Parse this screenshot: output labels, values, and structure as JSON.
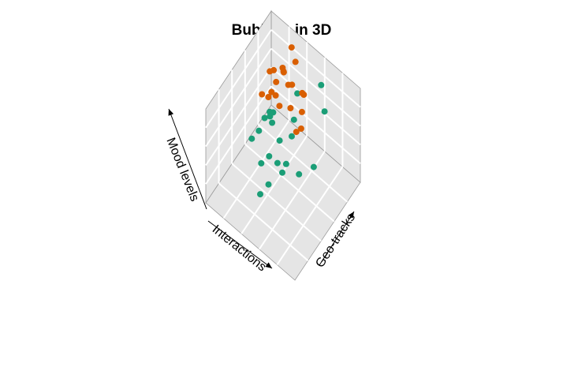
{
  "chart_data": {
    "type": "scatter",
    "subtype": "3d-scatter",
    "title": "Bubbles in 3D",
    "xlabel": "Interactions",
    "ylabel": "Geo-tracks",
    "zlabel": "Mood levels",
    "grid": true,
    "panel_color": "#e5e5e5",
    "grid_color": "#ffffff",
    "series": [
      {
        "color": "#1b9e77",
        "points": [
          {
            "x": 0.33,
            "y": 0.85,
            "z": 0.92
          },
          {
            "x": 0.27,
            "y": 0.82,
            "z": 0.72
          },
          {
            "x": 0.45,
            "y": 0.65,
            "z": 0.94
          },
          {
            "x": 0.51,
            "y": 0.68,
            "z": 0.58
          },
          {
            "x": 0.55,
            "y": 0.7,
            "z": 0.35
          },
          {
            "x": 0.48,
            "y": 0.52,
            "z": 0.3
          },
          {
            "x": 0.62,
            "y": 0.61,
            "z": 0.34
          },
          {
            "x": 0.6,
            "y": 0.55,
            "z": 0.18
          },
          {
            "x": 0.56,
            "y": 0.57,
            "z": 0.09
          },
          {
            "x": 0.62,
            "y": 0.44,
            "z": 0.05
          },
          {
            "x": 0.66,
            "y": 0.55,
            "z": 0.56
          },
          {
            "x": 0.38,
            "y": 0.58,
            "z": 0.21
          },
          {
            "x": 0.31,
            "y": 0.71,
            "z": 0.21
          },
          {
            "x": 0.62,
            "y": 0.33,
            "z": 0.39
          },
          {
            "x": 0.68,
            "y": 0.54,
            "z": 0.67
          },
          {
            "x": 0.67,
            "y": 0.58,
            "z": 0.63
          },
          {
            "x": 0.72,
            "y": 0.43,
            "z": 0.55
          },
          {
            "x": 0.62,
            "y": 0.45,
            "z": 0.34
          },
          {
            "x": 0.75,
            "y": 0.64,
            "z": 0.46
          },
          {
            "x": 0.61,
            "y": 0.3,
            "z": 0.1
          },
          {
            "x": 0.7,
            "y": 0.49,
            "z": 0.64
          },
          {
            "x": 0.8,
            "y": 0.43,
            "z": 0.4
          }
        ]
      },
      {
        "color": "#d95f02",
        "points": [
          {
            "x": 0.63,
            "y": 0.79,
            "z": 0.49
          },
          {
            "x": 0.72,
            "y": 0.88,
            "z": 0.57
          },
          {
            "x": 0.75,
            "y": 0.97,
            "z": 0.85
          },
          {
            "x": 0.83,
            "y": 0.96,
            "z": 0.53
          },
          {
            "x": 0.65,
            "y": 0.84,
            "z": 0.67
          },
          {
            "x": 0.51,
            "y": 0.83,
            "z": 0.69
          },
          {
            "x": 0.45,
            "y": 0.72,
            "z": 0.67
          },
          {
            "x": 0.77,
            "y": 0.86,
            "z": 0.73
          },
          {
            "x": 0.84,
            "y": 0.97,
            "z": 0.52
          },
          {
            "x": 0.87,
            "y": 0.78,
            "z": 0.42
          },
          {
            "x": 0.52,
            "y": 0.82,
            "z": 0.71
          },
          {
            "x": 0.64,
            "y": 0.88,
            "z": 0.88
          },
          {
            "x": 0.71,
            "y": 0.73,
            "z": 0.51
          },
          {
            "x": 0.84,
            "y": 0.82,
            "z": 0.69
          },
          {
            "x": 0.77,
            "y": 0.69,
            "z": 0.65
          },
          {
            "x": 0.82,
            "y": 0.83,
            "z": 0.57
          },
          {
            "x": 0.84,
            "y": 0.76,
            "z": 0.74
          },
          {
            "x": 0.84,
            "y": 0.64,
            "z": 0.62
          },
          {
            "x": 0.84,
            "y": 0.85,
            "z": 0.39
          },
          {
            "x": 0.52,
            "y": 0.73,
            "z": 0.39
          },
          {
            "x": 0.51,
            "y": 0.79,
            "z": 0.37
          }
        ]
      }
    ]
  }
}
